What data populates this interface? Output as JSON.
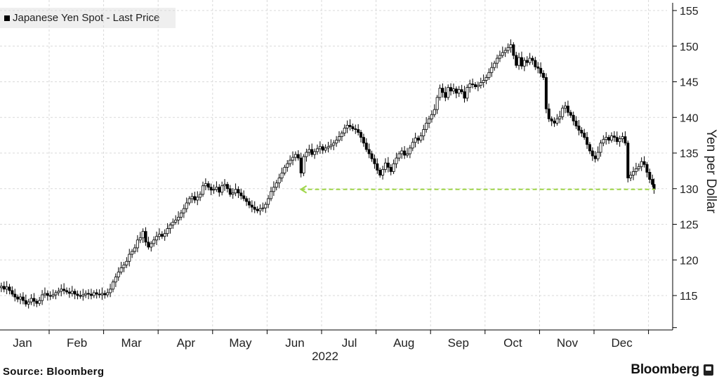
{
  "legend": {
    "label": "Japanese Yen Spot - Last Price"
  },
  "source": "Source: Bloomberg",
  "brand": "Bloomberg",
  "colors": {
    "candle": "#000000",
    "grid": "#d9d9d9",
    "reference_line": "#9fd64a",
    "background": "#ffffff",
    "legend_bg": "#efefef"
  },
  "chart_data": {
    "type": "candlestick",
    "title": "",
    "legend": [
      "Japanese Yen Spot - Last Price"
    ],
    "ylabel": "Yen per Dollar",
    "xlabel": "2022",
    "ylim": [
      110,
      156
    ],
    "yticks": [
      115,
      120,
      125,
      130,
      135,
      140,
      145,
      150,
      155
    ],
    "months": [
      "Jan",
      "Feb",
      "Mar",
      "Apr",
      "May",
      "Jun",
      "Jul",
      "Aug",
      "Sep",
      "Oct",
      "Nov",
      "Dec"
    ],
    "grid": true,
    "legend_position": "top-left",
    "reference_line": {
      "value": 129.9,
      "style": "dashed",
      "from_month": 5.6,
      "to_month": 12.1,
      "arrow_at_start": true
    },
    "series": [
      {
        "name": "Japanese Yen Spot - Last Price",
        "points": [
          [
            0.0,
            116.1
          ],
          [
            0.05,
            116.3
          ],
          [
            0.1,
            115.9
          ],
          [
            0.15,
            116.2
          ],
          [
            0.2,
            115.7
          ],
          [
            0.25,
            115.2
          ],
          [
            0.3,
            114.8
          ],
          [
            0.35,
            114.5
          ],
          [
            0.4,
            114.8
          ],
          [
            0.45,
            114.3
          ],
          [
            0.5,
            113.8
          ],
          [
            0.55,
            114.1
          ],
          [
            0.6,
            114.6
          ],
          [
            0.65,
            114.2
          ],
          [
            0.7,
            113.9
          ],
          [
            0.75,
            114.3
          ],
          [
            0.8,
            115.1
          ],
          [
            0.85,
            115.3
          ],
          [
            0.9,
            115.0
          ],
          [
            0.95,
            114.9
          ],
          [
            1.0,
            115.1
          ],
          [
            1.05,
            115.4
          ],
          [
            1.1,
            115.6
          ],
          [
            1.15,
            115.9
          ],
          [
            1.2,
            115.7
          ],
          [
            1.25,
            115.5
          ],
          [
            1.3,
            115.3
          ],
          [
            1.35,
            115.6
          ],
          [
            1.4,
            115.2
          ],
          [
            1.45,
            115.0
          ],
          [
            1.5,
            114.9
          ],
          [
            1.55,
            115.1
          ],
          [
            1.6,
            115.3
          ],
          [
            1.65,
            115.2
          ],
          [
            1.7,
            115.0
          ],
          [
            1.75,
            115.4
          ],
          [
            1.8,
            115.2
          ],
          [
            1.85,
            115.1
          ],
          [
            1.9,
            115.3
          ],
          [
            1.95,
            115.1
          ],
          [
            2.0,
            115.4
          ],
          [
            2.05,
            115.9
          ],
          [
            2.1,
            116.9
          ],
          [
            2.15,
            117.6
          ],
          [
            2.2,
            118.3
          ],
          [
            2.25,
            118.9
          ],
          [
            2.3,
            119.3
          ],
          [
            2.35,
            119.8
          ],
          [
            2.4,
            120.8
          ],
          [
            2.45,
            121.2
          ],
          [
            2.5,
            121.7
          ],
          [
            2.55,
            122.8
          ],
          [
            2.6,
            123.1
          ],
          [
            2.65,
            124.0
          ],
          [
            2.7,
            122.5
          ],
          [
            2.75,
            121.8
          ],
          [
            2.8,
            122.3
          ],
          [
            2.85,
            122.8
          ],
          [
            2.9,
            123.3
          ],
          [
            2.95,
            123.6
          ],
          [
            3.0,
            123.3
          ],
          [
            3.05,
            123.7
          ],
          [
            3.1,
            124.4
          ],
          [
            3.15,
            124.9
          ],
          [
            3.2,
            125.3
          ],
          [
            3.25,
            125.6
          ],
          [
            3.3,
            126.0
          ],
          [
            3.35,
            126.6
          ],
          [
            3.4,
            127.2
          ],
          [
            3.45,
            128.0
          ],
          [
            3.5,
            128.6
          ],
          [
            3.55,
            128.9
          ],
          [
            3.6,
            128.4
          ],
          [
            3.65,
            128.8
          ],
          [
            3.7,
            129.2
          ],
          [
            3.75,
            130.4
          ],
          [
            3.8,
            130.7
          ],
          [
            3.85,
            130.2
          ],
          [
            3.9,
            129.8
          ],
          [
            3.95,
            129.9
          ],
          [
            4.0,
            130.2
          ],
          [
            4.05,
            129.5
          ],
          [
            4.1,
            130.4
          ],
          [
            4.15,
            130.6
          ],
          [
            4.2,
            130.0
          ],
          [
            4.25,
            129.2
          ],
          [
            4.3,
            129.4
          ],
          [
            4.35,
            129.9
          ],
          [
            4.4,
            129.4
          ],
          [
            4.45,
            129.0
          ],
          [
            4.5,
            128.6
          ],
          [
            4.55,
            128.2
          ],
          [
            4.6,
            127.7
          ],
          [
            4.65,
            127.4
          ],
          [
            4.7,
            127.1
          ],
          [
            4.75,
            126.9
          ],
          [
            4.8,
            127.2
          ],
          [
            4.85,
            127.3
          ],
          [
            4.9,
            127.8
          ],
          [
            4.95,
            128.6
          ],
          [
            5.0,
            129.6
          ],
          [
            5.05,
            130.2
          ],
          [
            5.1,
            130.8
          ],
          [
            5.15,
            131.5
          ],
          [
            5.2,
            132.2
          ],
          [
            5.25,
            133.0
          ],
          [
            5.3,
            133.5
          ],
          [
            5.35,
            134.0
          ],
          [
            5.4,
            134.4
          ],
          [
            5.45,
            134.8
          ],
          [
            5.5,
            134.3
          ],
          [
            5.55,
            132.2
          ],
          [
            5.6,
            134.5
          ],
          [
            5.65,
            135.1
          ],
          [
            5.7,
            135.5
          ],
          [
            5.75,
            134.8
          ],
          [
            5.8,
            135.2
          ],
          [
            5.85,
            135.6
          ],
          [
            5.9,
            135.9
          ],
          [
            5.95,
            135.4
          ],
          [
            6.0,
            135.7
          ],
          [
            6.05,
            135.9
          ],
          [
            6.1,
            136.1
          ],
          [
            6.15,
            136.4
          ],
          [
            6.2,
            136.8
          ],
          [
            6.25,
            137.3
          ],
          [
            6.3,
            137.8
          ],
          [
            6.35,
            138.5
          ],
          [
            6.4,
            138.9
          ],
          [
            6.45,
            138.7
          ],
          [
            6.5,
            138.4
          ],
          [
            6.55,
            138.3
          ],
          [
            6.6,
            137.9
          ],
          [
            6.65,
            137.2
          ],
          [
            6.7,
            136.4
          ],
          [
            6.75,
            135.5
          ],
          [
            6.8,
            134.9
          ],
          [
            6.85,
            134.2
          ],
          [
            6.9,
            133.5
          ],
          [
            6.95,
            132.6
          ],
          [
            7.0,
            131.9
          ],
          [
            7.05,
            132.7
          ],
          [
            7.1,
            133.6
          ],
          [
            7.15,
            133.0
          ],
          [
            7.2,
            132.4
          ],
          [
            7.25,
            133.5
          ],
          [
            7.3,
            134.3
          ],
          [
            7.35,
            134.9
          ],
          [
            7.4,
            135.3
          ],
          [
            7.45,
            134.7
          ],
          [
            7.5,
            134.9
          ],
          [
            7.55,
            135.7
          ],
          [
            7.6,
            136.5
          ],
          [
            7.65,
            137.1
          ],
          [
            7.7,
            136.8
          ],
          [
            7.75,
            137.4
          ],
          [
            7.8,
            138.3
          ],
          [
            7.85,
            139.2
          ],
          [
            7.9,
            139.8
          ],
          [
            7.95,
            140.4
          ],
          [
            8.0,
            141.1
          ],
          [
            8.05,
            142.8
          ],
          [
            8.1,
            144.1
          ],
          [
            8.15,
            143.5
          ],
          [
            8.2,
            142.8
          ],
          [
            8.25,
            144.2
          ],
          [
            8.3,
            143.7
          ],
          [
            8.35,
            144.0
          ],
          [
            8.4,
            143.4
          ],
          [
            8.45,
            143.9
          ],
          [
            8.5,
            143.6
          ],
          [
            8.55,
            142.7
          ],
          [
            8.6,
            144.2
          ],
          [
            8.65,
            144.7
          ],
          [
            8.7,
            144.6
          ],
          [
            8.75,
            144.3
          ],
          [
            8.8,
            144.5
          ],
          [
            8.85,
            144.9
          ],
          [
            8.9,
            145.2
          ],
          [
            8.95,
            145.6
          ],
          [
            9.0,
            146.3
          ],
          [
            9.05,
            147.0
          ],
          [
            9.1,
            147.6
          ],
          [
            9.15,
            148.3
          ],
          [
            9.2,
            148.7
          ],
          [
            9.25,
            149.1
          ],
          [
            9.3,
            149.4
          ],
          [
            9.35,
            149.8
          ],
          [
            9.4,
            150.2
          ],
          [
            9.45,
            148.7
          ],
          [
            9.5,
            147.3
          ],
          [
            9.55,
            148.4
          ],
          [
            9.6,
            147.2
          ],
          [
            9.65,
            148.0
          ],
          [
            9.7,
            147.7
          ],
          [
            9.75,
            148.3
          ],
          [
            9.8,
            148.0
          ],
          [
            9.85,
            147.1
          ],
          [
            9.9,
            146.9
          ],
          [
            9.95,
            146.2
          ],
          [
            10.0,
            145.6
          ],
          [
            10.05,
            141.2
          ],
          [
            10.1,
            139.8
          ],
          [
            10.15,
            139.5
          ],
          [
            10.2,
            139.2
          ],
          [
            10.25,
            139.8
          ],
          [
            10.3,
            140.1
          ],
          [
            10.35,
            141.3
          ],
          [
            10.4,
            141.6
          ],
          [
            10.45,
            140.7
          ],
          [
            10.5,
            140.3
          ],
          [
            10.55,
            139.5
          ],
          [
            10.6,
            138.8
          ],
          [
            10.65,
            138.2
          ],
          [
            10.7,
            137.8
          ],
          [
            10.75,
            137.2
          ],
          [
            10.8,
            136.2
          ],
          [
            10.85,
            135.3
          ],
          [
            10.9,
            134.6
          ],
          [
            10.95,
            134.2
          ],
          [
            11.0,
            135.1
          ],
          [
            11.05,
            136.4
          ],
          [
            11.1,
            136.9
          ],
          [
            11.15,
            137.2
          ],
          [
            11.2,
            136.8
          ],
          [
            11.25,
            137.4
          ],
          [
            11.3,
            137.2
          ],
          [
            11.35,
            136.6
          ],
          [
            11.4,
            137.0
          ],
          [
            11.45,
            137.3
          ],
          [
            11.5,
            136.4
          ],
          [
            11.55,
            131.5
          ],
          [
            11.6,
            131.9
          ],
          [
            11.65,
            132.4
          ],
          [
            11.7,
            132.8
          ],
          [
            11.75,
            133.1
          ],
          [
            11.8,
            133.8
          ],
          [
            11.85,
            133.4
          ],
          [
            11.9,
            132.3
          ],
          [
            11.95,
            131.3
          ],
          [
            12.0,
            130.6
          ],
          [
            12.03,
            129.9
          ]
        ]
      }
    ]
  }
}
